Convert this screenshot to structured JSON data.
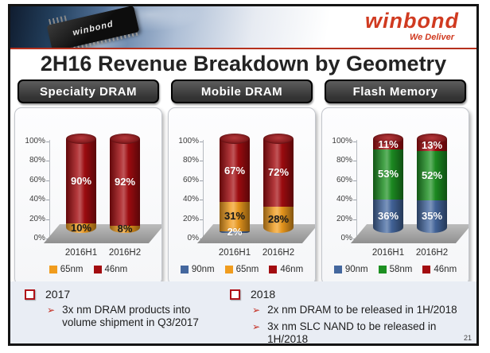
{
  "header": {
    "brand": "winbond",
    "tagline": "We Deliver",
    "chip_text": "winbond"
  },
  "title": "2H16 Revenue Breakdown by Geometry",
  "page_number": "21",
  "colors": {
    "brand_red": "#d03a20",
    "divider_red": "#b5301d",
    "panel_header_bg": "#3a3a3a",
    "notes_bg": "#e9edf4",
    "floor_gray": "#a5a5a5",
    "bullet_red": "#b01218",
    "bar_red_46nm": "#a30c10",
    "bar_orange_65nm": "#f09c1e",
    "bar_blue_90nm": "#44679e",
    "bar_green_58nm": "#1d9022"
  },
  "chart_data": [
    {
      "type": "bar",
      "stacked": true,
      "title": "Specialty  DRAM",
      "categories": [
        "2016H1",
        "2016H2"
      ],
      "yticks": [
        100,
        80,
        60,
        40,
        20,
        0
      ],
      "ylim": [
        0,
        100
      ],
      "legend_position": "bottom",
      "series": [
        {
          "name": "65nm",
          "color": "#f09c1e",
          "label_color": "#1a1a1a",
          "values": [
            10,
            8
          ]
        },
        {
          "name": "46nm",
          "color": "#a30c10",
          "label_color": "#ffffff",
          "values": [
            90,
            92
          ]
        }
      ]
    },
    {
      "type": "bar",
      "stacked": true,
      "title": "Mobile DRAM",
      "categories": [
        "2016H1",
        "2016H2"
      ],
      "yticks": [
        100,
        80,
        60,
        40,
        20,
        0
      ],
      "ylim": [
        0,
        100
      ],
      "legend_position": "bottom",
      "series": [
        {
          "name": "90nm",
          "color": "#44679e",
          "label_color": "#ffffff",
          "values": [
            2,
            0
          ]
        },
        {
          "name": "65nm",
          "color": "#f09c1e",
          "label_color": "#1a1a1a",
          "values": [
            31,
            28
          ]
        },
        {
          "name": "46nm",
          "color": "#a30c10",
          "label_color": "#ffffff",
          "values": [
            67,
            72
          ]
        }
      ]
    },
    {
      "type": "bar",
      "stacked": true,
      "title": "Flash Memory",
      "categories": [
        "2016H1",
        "2016H2"
      ],
      "yticks": [
        100,
        80,
        60,
        40,
        20,
        0
      ],
      "ylim": [
        0,
        100
      ],
      "legend_position": "bottom",
      "series": [
        {
          "name": "90nm",
          "color": "#44679e",
          "label_color": "#ffffff",
          "values": [
            36,
            35
          ]
        },
        {
          "name": "58nm",
          "color": "#1d9022",
          "label_color": "#ffffff",
          "values": [
            53,
            52
          ]
        },
        {
          "name": "46nm",
          "color": "#a30c10",
          "label_color": "#ffffff",
          "values": [
            11,
            13
          ]
        }
      ]
    }
  ],
  "notes": {
    "columns": [
      {
        "year": "2017",
        "items": [
          "3x nm DRAM products into volume shipment in Q3/2017"
        ]
      },
      {
        "year": "2018",
        "items": [
          "2x nm DRAM to be released in 1H/2018",
          "3x nm SLC NAND to be released in 1H/2018"
        ]
      }
    ]
  }
}
